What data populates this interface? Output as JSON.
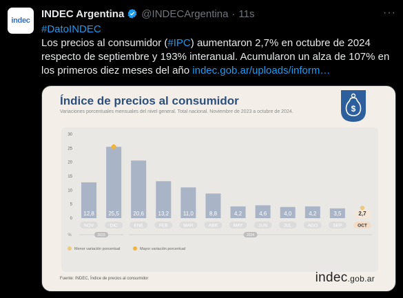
{
  "tweet": {
    "avatar_text": "indec",
    "author_name": "INDEC Argentina",
    "handle": "@INDECArgentina",
    "separator": "·",
    "time": "11s",
    "more_label": "···",
    "hashtag": "#DatoINDEC",
    "body_line_1_pre": "Los precios al consumidor (",
    "body_hashtag": "#IPC",
    "body_line_1_post": ") aumentaron 2,7% en octubre de 2024 respecto de septiembre y 193% interanual. Acumularon un alza de 107% en los primeros diez meses del año ",
    "link_text": "indec.gob.ar/uploads/inform…",
    "colors": {
      "link": "#1d9bf0",
      "muted": "#71767b",
      "verified": "#1d9bf0"
    }
  },
  "card": {
    "title": "Índice de precios al consumidor",
    "subtitle": "Variaciones porcentuales mensuales del nivel general. Total nacional. Noviembre de 2023 a octubre de 2024.",
    "source": "Fuente: INDEC, Índice de precios al consumidor",
    "brand_main": "indec",
    "brand_suffix": ".gob.ar",
    "badge_icon": "money-bag-icon",
    "legend_min": "Menor variación porcentual",
    "legend_max": "Mayor variación porcentual",
    "year_labels": [
      "2023",
      "2024"
    ],
    "percent_symbol": "%"
  },
  "chart_data": {
    "type": "bar",
    "title": "Índice de precios al consumidor",
    "categories": [
      "NOV",
      "DIC",
      "ENE",
      "FEB",
      "MAR",
      "ABR",
      "MAY",
      "JUN",
      "JUL",
      "AGO",
      "SEP",
      "OCT"
    ],
    "values": [
      12.8,
      25.5,
      20.6,
      13.2,
      11.0,
      8.8,
      4.2,
      4.6,
      4.0,
      4.2,
      3.5,
      2.7
    ],
    "value_labels": [
      "12,8",
      "25,5",
      "20,6",
      "13,2",
      "11,0",
      "8,8",
      "4,2",
      "4,6",
      "4,0",
      "4,2",
      "3,5",
      "2,7"
    ],
    "yticks": [
      0,
      5,
      10,
      15,
      20,
      25,
      30
    ],
    "ylim": [
      0,
      30
    ],
    "max_index": 1,
    "min_index": 11,
    "colors": {
      "bar": "#a9b4c6",
      "bar_last": "#f4e7d8",
      "highlight": "#f0b43c",
      "label": "#5a6475"
    }
  }
}
